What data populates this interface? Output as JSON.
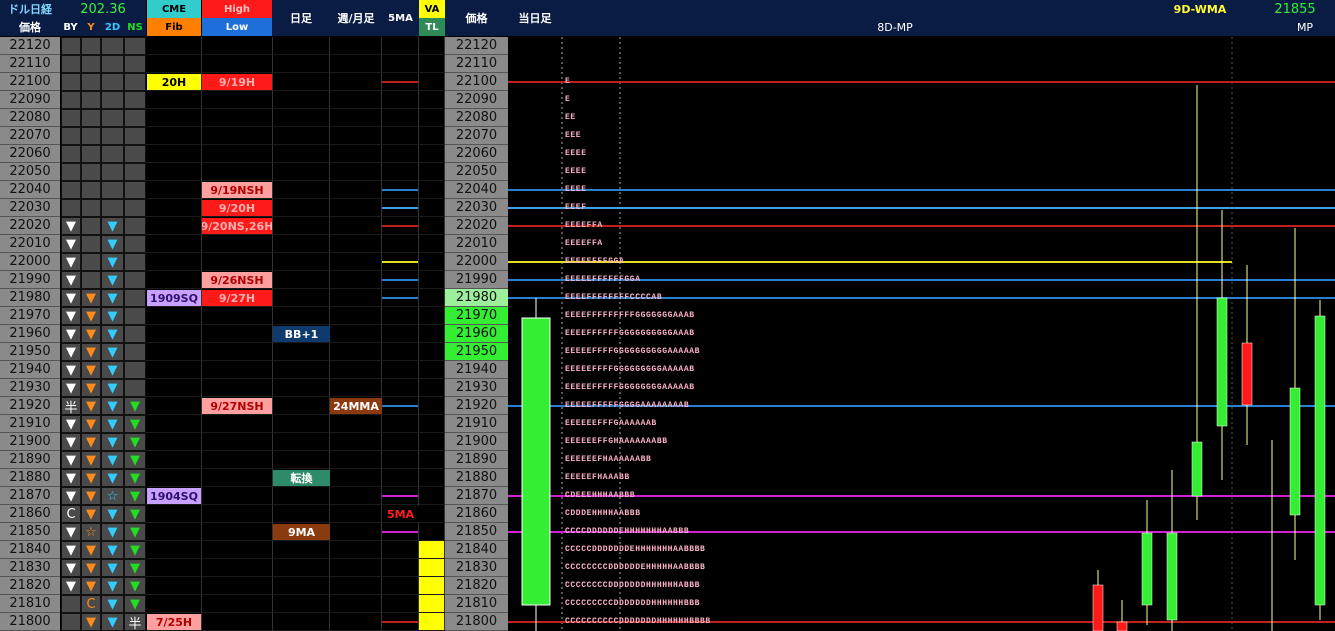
{
  "header": {
    "title": "ドル日経",
    "rate": "202.36",
    "price_label": "価格",
    "by": "BY",
    "y": "Y",
    "d2": "2D",
    "ns": "NS",
    "cme": "CME",
    "fib": "Fib",
    "high": "High",
    "low": "Low",
    "day": "日足",
    "week": "週/月足",
    "ma5": "5MA",
    "va": "VA",
    "tl": "TL",
    "price_label2": "価格",
    "today": "当日足",
    "wma": "9D-WMA",
    "wma_value": 21855,
    "mp_title": "8D-MP",
    "mp": "MP"
  },
  "rows": [
    {
      "price": 22120
    },
    {
      "price": 22110
    },
    {
      "price": 22100,
      "cme": {
        "text": "20H",
        "bg": "#ffff00",
        "fg": "#000000"
      },
      "high": {
        "text": "9/19H",
        "bg": "#ff1a1a",
        "fg": "#ffb0b0"
      },
      "tpo": "E"
    },
    {
      "price": 22090,
      "tpo": "E"
    },
    {
      "price": 22080,
      "tpo": "EE"
    },
    {
      "price": 22070,
      "tpo": "EEE"
    },
    {
      "price": 22060,
      "tpo": "EEEE"
    },
    {
      "price": 22050,
      "tpo": "EEEE"
    },
    {
      "price": 22040,
      "high": {
        "text": "9/19NSH",
        "bg": "#ffa0a0",
        "fg": "#b00000"
      },
      "tpo": "EEEE"
    },
    {
      "price": 22030,
      "high": {
        "text": "9/20H",
        "bg": "#ff1a1a",
        "fg": "#ffb0b0"
      },
      "tpo": "EEEF"
    },
    {
      "price": 22020,
      "by": "▼",
      "d2": "▼",
      "high": {
        "text": "9/20NS,26H",
        "bg": "#ff1a1a",
        "fg": "#ffb0b0"
      },
      "tpo": "EEEEFFA"
    },
    {
      "price": 22010,
      "by": "▼",
      "d2": "▼",
      "tpo": "EEEEFFA"
    },
    {
      "price": 22000,
      "by": "▼",
      "d2": "▼",
      "tpo": "EEEEEFFFGGA"
    },
    {
      "price": 21990,
      "by": "▼",
      "d2": "▼",
      "high": {
        "text": "9/26NSH",
        "bg": "#ffa0a0",
        "fg": "#b00000"
      },
      "tpo": "EEEEEFFFFFFGGA"
    },
    {
      "price": 21980,
      "by": "▼",
      "y": "▼",
      "d2": "▼",
      "cme": {
        "text": "1909SQ",
        "bg": "#c8a0ff",
        "fg": "#30106a"
      },
      "high": {
        "text": "9/27H",
        "bg": "#ff1a1a",
        "fg": "#ffb0b0"
      },
      "price_bg": "#9cf09c",
      "tpo": "EEEEFFFFFFFFCCCCAB"
    },
    {
      "price": 21970,
      "by": "▼",
      "y": "▼",
      "d2": "▼",
      "price_bg": "#33ee33",
      "tpo": "EEEEFFFFFFFFFGGGGGGGAAAB"
    },
    {
      "price": 21960,
      "by": "▼",
      "y": "▼",
      "d2": "▼",
      "day": {
        "text": "BB+1",
        "bg": "#0e3a6e",
        "fg": "#ffffff"
      },
      "price_bg": "#33ee33",
      "tpo": "EEEEFFFFFFGGGGGGGGGGAAAB"
    },
    {
      "price": 21950,
      "by": "▼",
      "y": "▼",
      "d2": "▼",
      "price_bg": "#33ee33",
      "tpo": "EEEEEFFFFGGGGGGGGGGAAAAAB"
    },
    {
      "price": 21940,
      "by": "▼",
      "y": "▼",
      "d2": "▼",
      "tpo": "EEEEEFFFFGGGGGGGGGAAAAAB"
    },
    {
      "price": 21930,
      "by": "▼",
      "y": "▼",
      "d2": "▼",
      "tpo": "EEEEEFFFFFGGGGGGGGAAAAAB"
    },
    {
      "price": 21920,
      "by": "半",
      "y": "▼",
      "d2": "▼",
      "ns": "▼",
      "high": {
        "text": "9/27NSH",
        "bg": "#ffa0a0",
        "fg": "#b00000"
      },
      "week": {
        "text": "24MMA",
        "bg": "#8b3a10",
        "fg": "#ffffff"
      },
      "tpo": "EEEEEFFFFFGGGGAAAAAAAAB"
    },
    {
      "price": 21910,
      "by": "▼",
      "y": "▼",
      "d2": "▼",
      "ns": "▼",
      "tpo": "EEEEEEFFFGAAAAAAB"
    },
    {
      "price": 21900,
      "by": "▼",
      "y": "▼",
      "d2": "▼",
      "ns": "▼",
      "tpo": "EEEEEEFFGHAAAAAAABB"
    },
    {
      "price": 21890,
      "by": "▼",
      "y": "▼",
      "d2": "▼",
      "ns": "▼",
      "tpo": "EEEEEEFHAAAAAABB"
    },
    {
      "price": 21880,
      "by": "▼",
      "y": "▼",
      "d2": "▼",
      "ns": "▼",
      "day": {
        "text": "転換",
        "bg": "#2e8b6a",
        "fg": "#ffffff"
      },
      "tpo": "EEEEEFHAAABB"
    },
    {
      "price": 21870,
      "by": "▼",
      "y": "▼",
      "d2": "☆",
      "ns": "▼",
      "cme": {
        "text": "1904SQ",
        "bg": "#c8a0ff",
        "fg": "#30106a"
      },
      "tpo": "CDEEEHHHAABBB"
    },
    {
      "price": 21860,
      "by": "C",
      "y": "▼",
      "d2": "▼",
      "ns": "▼",
      "ma5": {
        "text": "5MA",
        "bg": "#000000",
        "fg": "#ff2020"
      },
      "tpo": "CDDDEHHHHAABBB"
    },
    {
      "price": 21850,
      "by": "▼",
      "y": "☆",
      "d2": "▼",
      "ns": "▼",
      "day": {
        "text": "9MA",
        "bg": "#8b3a10",
        "fg": "#ffffff"
      },
      "tpo": "CCCCDDDDDDEHHHHHHHAABBB"
    },
    {
      "price": 21840,
      "by": "▼",
      "y": "▼",
      "d2": "▼",
      "ns": "▼",
      "va_color": "#ffff00",
      "tpo": "CCCCCDDDDDDDEHHHHHHHAABBBB"
    },
    {
      "price": 21830,
      "by": "▼",
      "y": "▼",
      "d2": "▼",
      "ns": "▼",
      "va_color": "#ffff00",
      "tpo": "CCCCCCCCDDDDDDEHHHHHAABBBB"
    },
    {
      "price": 21820,
      "by": "▼",
      "y": "▼",
      "d2": "▼",
      "ns": "▼",
      "va_color": "#ffff00",
      "tpo": "CCCCCCCCDDDDDDDHHHHHHABBB"
    },
    {
      "price": 21810,
      "y": "C",
      "d2": "▼",
      "ns": "▼",
      "va_color": "#ffff00",
      "tpo": "CCCCCCCCCDDDDDDDHHHHHHBBB"
    },
    {
      "price": 21800,
      "y": "▼",
      "d2": "▼",
      "ns": "半",
      "cme": {
        "text": "7/25H",
        "bg": "#ffa0a0",
        "fg": "#b00000"
      },
      "va_color": "#ffff00",
      "tpo": "CCCCCCCCCCDDDDDDDHHHHHHBBBB"
    }
  ]
}
